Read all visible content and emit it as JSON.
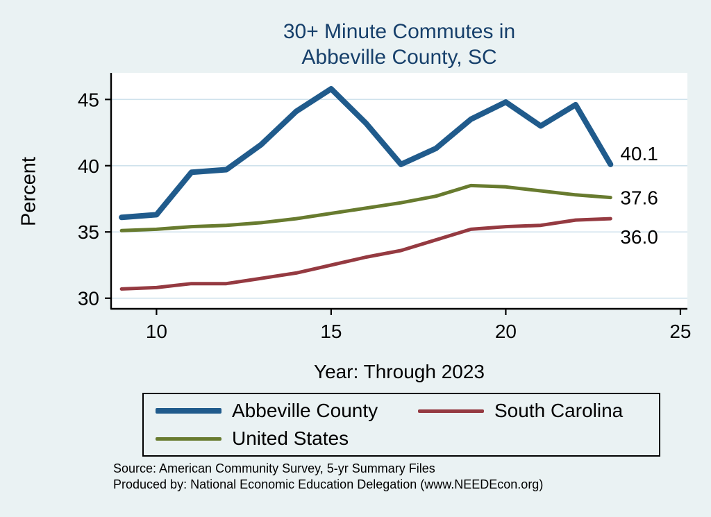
{
  "title": {
    "line1": "30+ Minute Commutes in",
    "line2": "Abbeville County, SC"
  },
  "footer": {
    "source": "Source: American Community Survey, 5-yr Summary Files",
    "produced_by": "Produced by: National Economic Education Delegation (www.NEEDEcon.org)"
  },
  "chart_data": {
    "type": "line",
    "title": "30+ Minute Commutes in Abbeville County, SC",
    "xlabel": "Year: Through 2023",
    "ylabel": "Percent",
    "x": [
      9,
      10,
      11,
      12,
      13,
      14,
      15,
      16,
      17,
      18,
      19,
      20,
      21,
      22,
      23
    ],
    "x_ticks": [
      10,
      15,
      20,
      25
    ],
    "y_ticks": [
      30,
      35,
      40,
      45
    ],
    "xlim": [
      8.7,
      25.2
    ],
    "ylim": [
      29.2,
      46.9
    ],
    "grid": true,
    "legend_position": "bottom",
    "series": [
      {
        "name": "Abbeville County",
        "color": "#205b8c",
        "line_width": 8,
        "values": [
          36.1,
          36.3,
          39.5,
          39.7,
          41.6,
          44.1,
          45.8,
          43.2,
          40.1,
          41.3,
          43.5,
          44.8,
          43.0,
          44.6,
          40.1
        ],
        "end_label": "40.1",
        "end_label_dy": -16
      },
      {
        "name": "South Carolina",
        "color": "#953a41",
        "line_width": 5,
        "values": [
          30.7,
          30.8,
          31.1,
          31.1,
          31.5,
          31.9,
          32.5,
          33.1,
          33.6,
          34.4,
          35.2,
          35.4,
          35.5,
          35.9,
          36.0
        ],
        "end_label": "36.0",
        "end_label_dy": 26
      },
      {
        "name": "United States",
        "color": "#687b2f",
        "line_width": 5,
        "values": [
          35.1,
          35.2,
          35.4,
          35.5,
          35.7,
          36.0,
          36.4,
          36.8,
          37.2,
          37.7,
          38.5,
          38.4,
          38.1,
          37.8,
          37.6
        ],
        "end_label": "37.6",
        "end_label_dy": 0
      }
    ],
    "theme": {
      "background": "#eaf2f3",
      "plot_background": "#ffffff",
      "grid_color": "#cfe2ec",
      "axis_color": "#000000",
      "title_color": "#17406b",
      "text_color": "#000000"
    }
  }
}
